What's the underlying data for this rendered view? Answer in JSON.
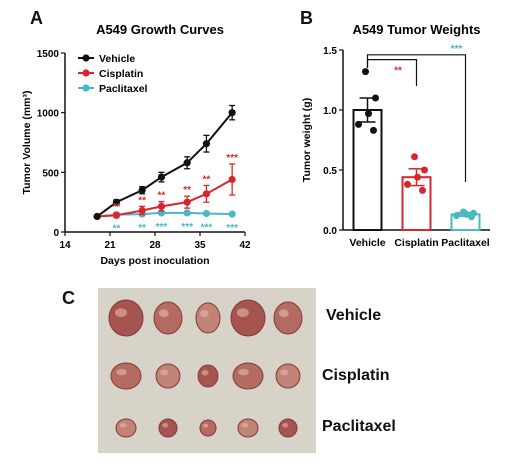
{
  "panels": {
    "a": {
      "letter": "A"
    },
    "b": {
      "letter": "B"
    },
    "c": {
      "letter": "C"
    }
  },
  "chart_data": [
    {
      "type": "line",
      "title": "A549 Growth Curves",
      "xlabel": "Days post inoculation",
      "ylabel": "Tumor Volume (mm³)",
      "xlim": [
        14,
        42
      ],
      "ylim": [
        0,
        1500
      ],
      "xticks": [
        "14",
        "21",
        "28",
        "35",
        "42"
      ],
      "yticks": [
        "0",
        "500",
        "1000",
        "1500"
      ],
      "legend_position": "top-left",
      "colors": {
        "Vehicle": "#111111",
        "Cisplatin": "#d9262c",
        "Paclitaxel": "#4bb8c4"
      },
      "series": [
        {
          "name": "Vehicle",
          "x": [
            19,
            22,
            26,
            29,
            33,
            36,
            40
          ],
          "y": [
            130,
            250,
            350,
            460,
            580,
            740,
            1000
          ],
          "err": [
            10,
            20,
            30,
            40,
            50,
            70,
            60
          ]
        },
        {
          "name": "Cisplatin",
          "x": [
            19,
            22,
            26,
            29,
            33,
            36,
            40
          ],
          "y": [
            130,
            140,
            180,
            215,
            250,
            320,
            440
          ],
          "err": [
            10,
            20,
            35,
            40,
            50,
            70,
            130
          ],
          "annotations": [
            "",
            "**",
            "**",
            "**",
            "**",
            "**",
            "***"
          ]
        },
        {
          "name": "Paclitaxel",
          "x": [
            19,
            22,
            26,
            29,
            33,
            36,
            40
          ],
          "y": [
            130,
            145,
            150,
            160,
            160,
            155,
            150
          ],
          "err": [
            10,
            10,
            10,
            10,
            10,
            10,
            10
          ],
          "annotations": [
            "",
            "**",
            "**",
            "***",
            "***",
            "***",
            "***"
          ]
        }
      ]
    },
    {
      "type": "bar",
      "title": "A549 Tumor Weights",
      "ylabel": "Tumor weight (g)",
      "ylim": [
        0,
        1.5
      ],
      "yticks": [
        "0.0",
        "0.5",
        "1.0",
        "1.5"
      ],
      "categories": [
        "Vehicle",
        "Cisplatin",
        "Paclitaxel"
      ],
      "values": [
        1.0,
        0.44,
        0.13
      ],
      "err": [
        0.1,
        0.07,
        0.015
      ],
      "points": [
        [
          1.32,
          1.1,
          0.97,
          0.88,
          0.83
        ],
        [
          0.61,
          0.5,
          0.44,
          0.38,
          0.33
        ],
        [
          0.15,
          0.14,
          0.13,
          0.12,
          0.11
        ]
      ],
      "colors": [
        "#111111",
        "#d9262c",
        "#4bb8c4"
      ],
      "significance": [
        {
          "from": "Vehicle",
          "to": "Cisplatin",
          "label": "**",
          "color": "#d9262c"
        },
        {
          "from": "Vehicle",
          "to": "Paclitaxel",
          "label": "***",
          "color": "#4bb8c4"
        }
      ]
    }
  ],
  "photo": {
    "rows": [
      {
        "label": "Vehicle",
        "count": 5
      },
      {
        "label": "Cisplatin",
        "count": 5
      },
      {
        "label": "Paclitaxel",
        "count": 5
      }
    ],
    "background": "#d8d3c8",
    "tumor_colors": [
      "#a14a45",
      "#b0635a",
      "#c07d70"
    ]
  }
}
